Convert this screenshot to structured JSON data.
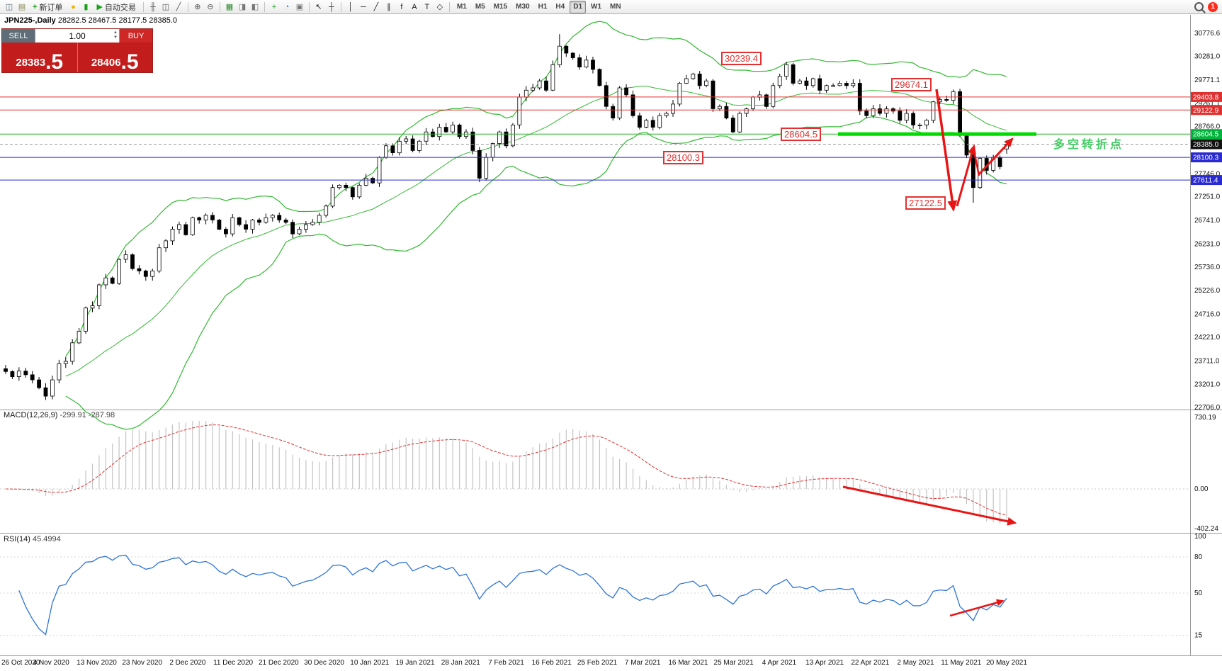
{
  "toolbar": {
    "items": [
      {
        "kind": "icon",
        "glyph": "◫",
        "color": "#5b6b7b",
        "name": "chart-window-icon"
      },
      {
        "kind": "icon",
        "glyph": "▤",
        "color": "#8a8a5a",
        "name": "profile-icon"
      },
      {
        "kind": "button",
        "glyph": "+",
        "color": "#18a018",
        "label": "新订单",
        "name": "new-order-button"
      },
      {
        "kind": "icon",
        "glyph": "●",
        "color": "#f0b400",
        "name": "news-icon"
      },
      {
        "kind": "icon",
        "glyph": "▮",
        "color": "#18a018",
        "name": "market-watch-icon"
      },
      {
        "kind": "button",
        "glyph": "▶",
        "color": "#18a018",
        "label": "自动交易",
        "name": "auto-trading-button"
      },
      {
        "kind": "sep"
      },
      {
        "kind": "icon",
        "glyph": "╫",
        "color": "#555555",
        "name": "bar-chart-icon"
      },
      {
        "kind": "icon",
        "glyph": "◫",
        "color": "#555555",
        "name": "candlestick-chart-icon"
      },
      {
        "kind": "icon",
        "glyph": "╱",
        "color": "#555555",
        "name": "line-chart-icon"
      },
      {
        "kind": "sep"
      },
      {
        "kind": "icon",
        "glyph": "⊕",
        "color": "#555555",
        "name": "zoom-in-icon"
      },
      {
        "kind": "icon",
        "glyph": "⊖",
        "color": "#555555",
        "name": "zoom-out-icon"
      },
      {
        "kind": "sep"
      },
      {
        "kind": "icon",
        "glyph": "▦",
        "color": "#2a8a2a",
        "name": "tile-windows-icon"
      },
      {
        "kind": "icon",
        "glyph": "◨",
        "color": "#777777",
        "name": "auto-scroll-icon"
      },
      {
        "kind": "icon",
        "glyph": "◧",
        "color": "#777777",
        "name": "chart-shift-icon"
      },
      {
        "kind": "sep"
      },
      {
        "kind": "icon",
        "glyph": "+",
        "color": "#18a018",
        "name": "add-indicator-icon"
      },
      {
        "kind": "icon",
        "glyph": "◔",
        "color": "#3a7bd5",
        "name": "period-icon"
      },
      {
        "kind": "icon",
        "glyph": "▣",
        "color": "#777777",
        "name": "templates-icon"
      },
      {
        "kind": "sep"
      },
      {
        "kind": "icon",
        "glyph": "↖",
        "color": "#222222",
        "name": "cursor-icon"
      },
      {
        "kind": "icon",
        "glyph": "┼",
        "color": "#222222",
        "name": "crosshair-icon"
      },
      {
        "kind": "sep"
      },
      {
        "kind": "icon",
        "glyph": "│",
        "color": "#222222",
        "name": "vertical-line-icon"
      },
      {
        "kind": "icon",
        "glyph": "─",
        "color": "#222222",
        "name": "horizontal-line-icon"
      },
      {
        "kind": "icon",
        "glyph": "╱",
        "color": "#222222",
        "name": "trendline-icon"
      },
      {
        "kind": "icon",
        "glyph": "∥",
        "color": "#222222",
        "name": "channel-icon"
      },
      {
        "kind": "icon",
        "glyph": "f",
        "color": "#222222",
        "name": "fibonacci-icon"
      },
      {
        "kind": "icon",
        "glyph": "A",
        "color": "#222222",
        "name": "text-icon"
      },
      {
        "kind": "icon",
        "glyph": "T",
        "color": "#222222",
        "name": "label-icon"
      },
      {
        "kind": "icon",
        "glyph": "◇",
        "color": "#222222",
        "name": "shapes-icon"
      },
      {
        "kind": "sep"
      }
    ],
    "timeframes": [
      "M1",
      "M5",
      "M15",
      "M30",
      "H1",
      "H4",
      "D1",
      "W1",
      "MN"
    ],
    "active_timeframe": "D1",
    "notification_badge": "1"
  },
  "chart": {
    "title": "JPN225-,Daily",
    "ohlc": "28282.5 28467.5 28177.5 28385.0",
    "annotations": {
      "box_30239": "30239.4",
      "box_29674": "29674.1",
      "box_28604": "28604.5",
      "box_28100": "28100.3",
      "box_27122": "27122.5",
      "turning_point": "多空转折点"
    }
  },
  "order_panel": {
    "sell_label": "SELL",
    "buy_label": "BUY",
    "volume": "1.00",
    "sell_price": "28383",
    "sell_pips": ".5",
    "buy_price": "28406",
    "buy_pips": ".5"
  },
  "chart_data": {
    "type": "candlestick",
    "symbol": "JPN225-",
    "period": "Daily",
    "ohlc_current": {
      "open": 28282.5,
      "high": 28467.5,
      "low": 28177.5,
      "close": 28385.0
    },
    "closes": [
      23480,
      23370,
      23490,
      23410,
      23300,
      23130,
      22950,
      23300,
      23650,
      23700,
      24100,
      24350,
      24850,
      24900,
      25350,
      25500,
      25380,
      25900,
      26000,
      25700,
      25650,
      25530,
      25650,
      26150,
      26300,
      26550,
      26650,
      26430,
      26800,
      26750,
      26850,
      26750,
      26550,
      26450,
      26800,
      26650,
      26550,
      26750,
      26700,
      26800,
      26850,
      26750,
      26700,
      26450,
      26550,
      26650,
      26700,
      26850,
      27050,
      27450,
      27500,
      27450,
      27250,
      27500,
      27650,
      27550,
      28100,
      28350,
      28200,
      28450,
      28500,
      28250,
      28450,
      28650,
      28550,
      28750,
      28650,
      28800,
      28550,
      28650,
      28250,
      27650,
      28100,
      28400,
      28650,
      28350,
      28800,
      29400,
      29550,
      29600,
      29750,
      29550,
      30100,
      30500,
      30350,
      30250,
      30050,
      30200,
      30000,
      29650,
      29200,
      28950,
      29600,
      29450,
      29000,
      28750,
      28900,
      28750,
      29000,
      29050,
      29250,
      29700,
      29800,
      29900,
      29650,
      29750,
      29150,
      29200,
      28950,
      28650,
      29050,
      29150,
      29400,
      29450,
      29200,
      29650,
      29850,
      30100,
      29700,
      29750,
      29650,
      29800,
      29550,
      29650,
      29650,
      29700,
      29650,
      29700,
      29100,
      29000,
      29150,
      29050,
      29150,
      29100,
      28900,
      29050,
      28800,
      28800,
      28900,
      29300,
      29350,
      29330,
      29520,
      28600,
      28150,
      27450,
      28080,
      27820,
      28100,
      27900,
      28385
    ],
    "time_labels": [
      "26 Oct 2020",
      "4 Nov 2020",
      "13 Nov 2020",
      "23 Nov 2020",
      "2 Dec 2020",
      "11 Dec 2020",
      "21 Dec 2020",
      "30 Dec 2020",
      "10 Jan 2021",
      "19 Jan 2021",
      "28 Jan 2021",
      "7 Feb 2021",
      "16 Feb 2021",
      "25 Feb 2021",
      "7 Mar 2021",
      "16 Mar 2021",
      "25 Mar 2021",
      "4 Apr 2021",
      "13 Apr 2021",
      "22 Apr 2021",
      "2 May 2021",
      "11 May 2021",
      "20 May 2021"
    ],
    "price_axis": [
      30776.6,
      30281.0,
      29771.1,
      29261.1,
      28766.0,
      27746.0,
      27251.0,
      26741.0,
      26231.0,
      25736.0,
      25226.0,
      24716.0,
      24221.0,
      23711.0,
      23201.0,
      22706.0
    ],
    "hlines": [
      {
        "price": 29403.8,
        "color": "#e03131",
        "thick": false
      },
      {
        "price": 29122.9,
        "color": "#e03131",
        "thick": false
      },
      {
        "price": 28604.5,
        "color": "#22b422",
        "thick": true
      },
      {
        "price": 28100.3,
        "color": "#2a2ad2",
        "thick": false
      },
      {
        "price": 27611.4,
        "color": "#2a2ad2",
        "thick": false
      }
    ],
    "current_price": 28385.0,
    "key_low": 27122.5,
    "bollinger": {
      "period": 20,
      "deviation": 2
    },
    "macd": {
      "name": "MACD(12,26,9)",
      "values": "-299.91 -287.98",
      "axis": [
        730.19,
        0,
        -402.24
      ]
    },
    "rsi": {
      "name": "RSI(14)",
      "value": "45.4994",
      "axis": [
        100,
        80,
        50,
        15
      ]
    }
  }
}
